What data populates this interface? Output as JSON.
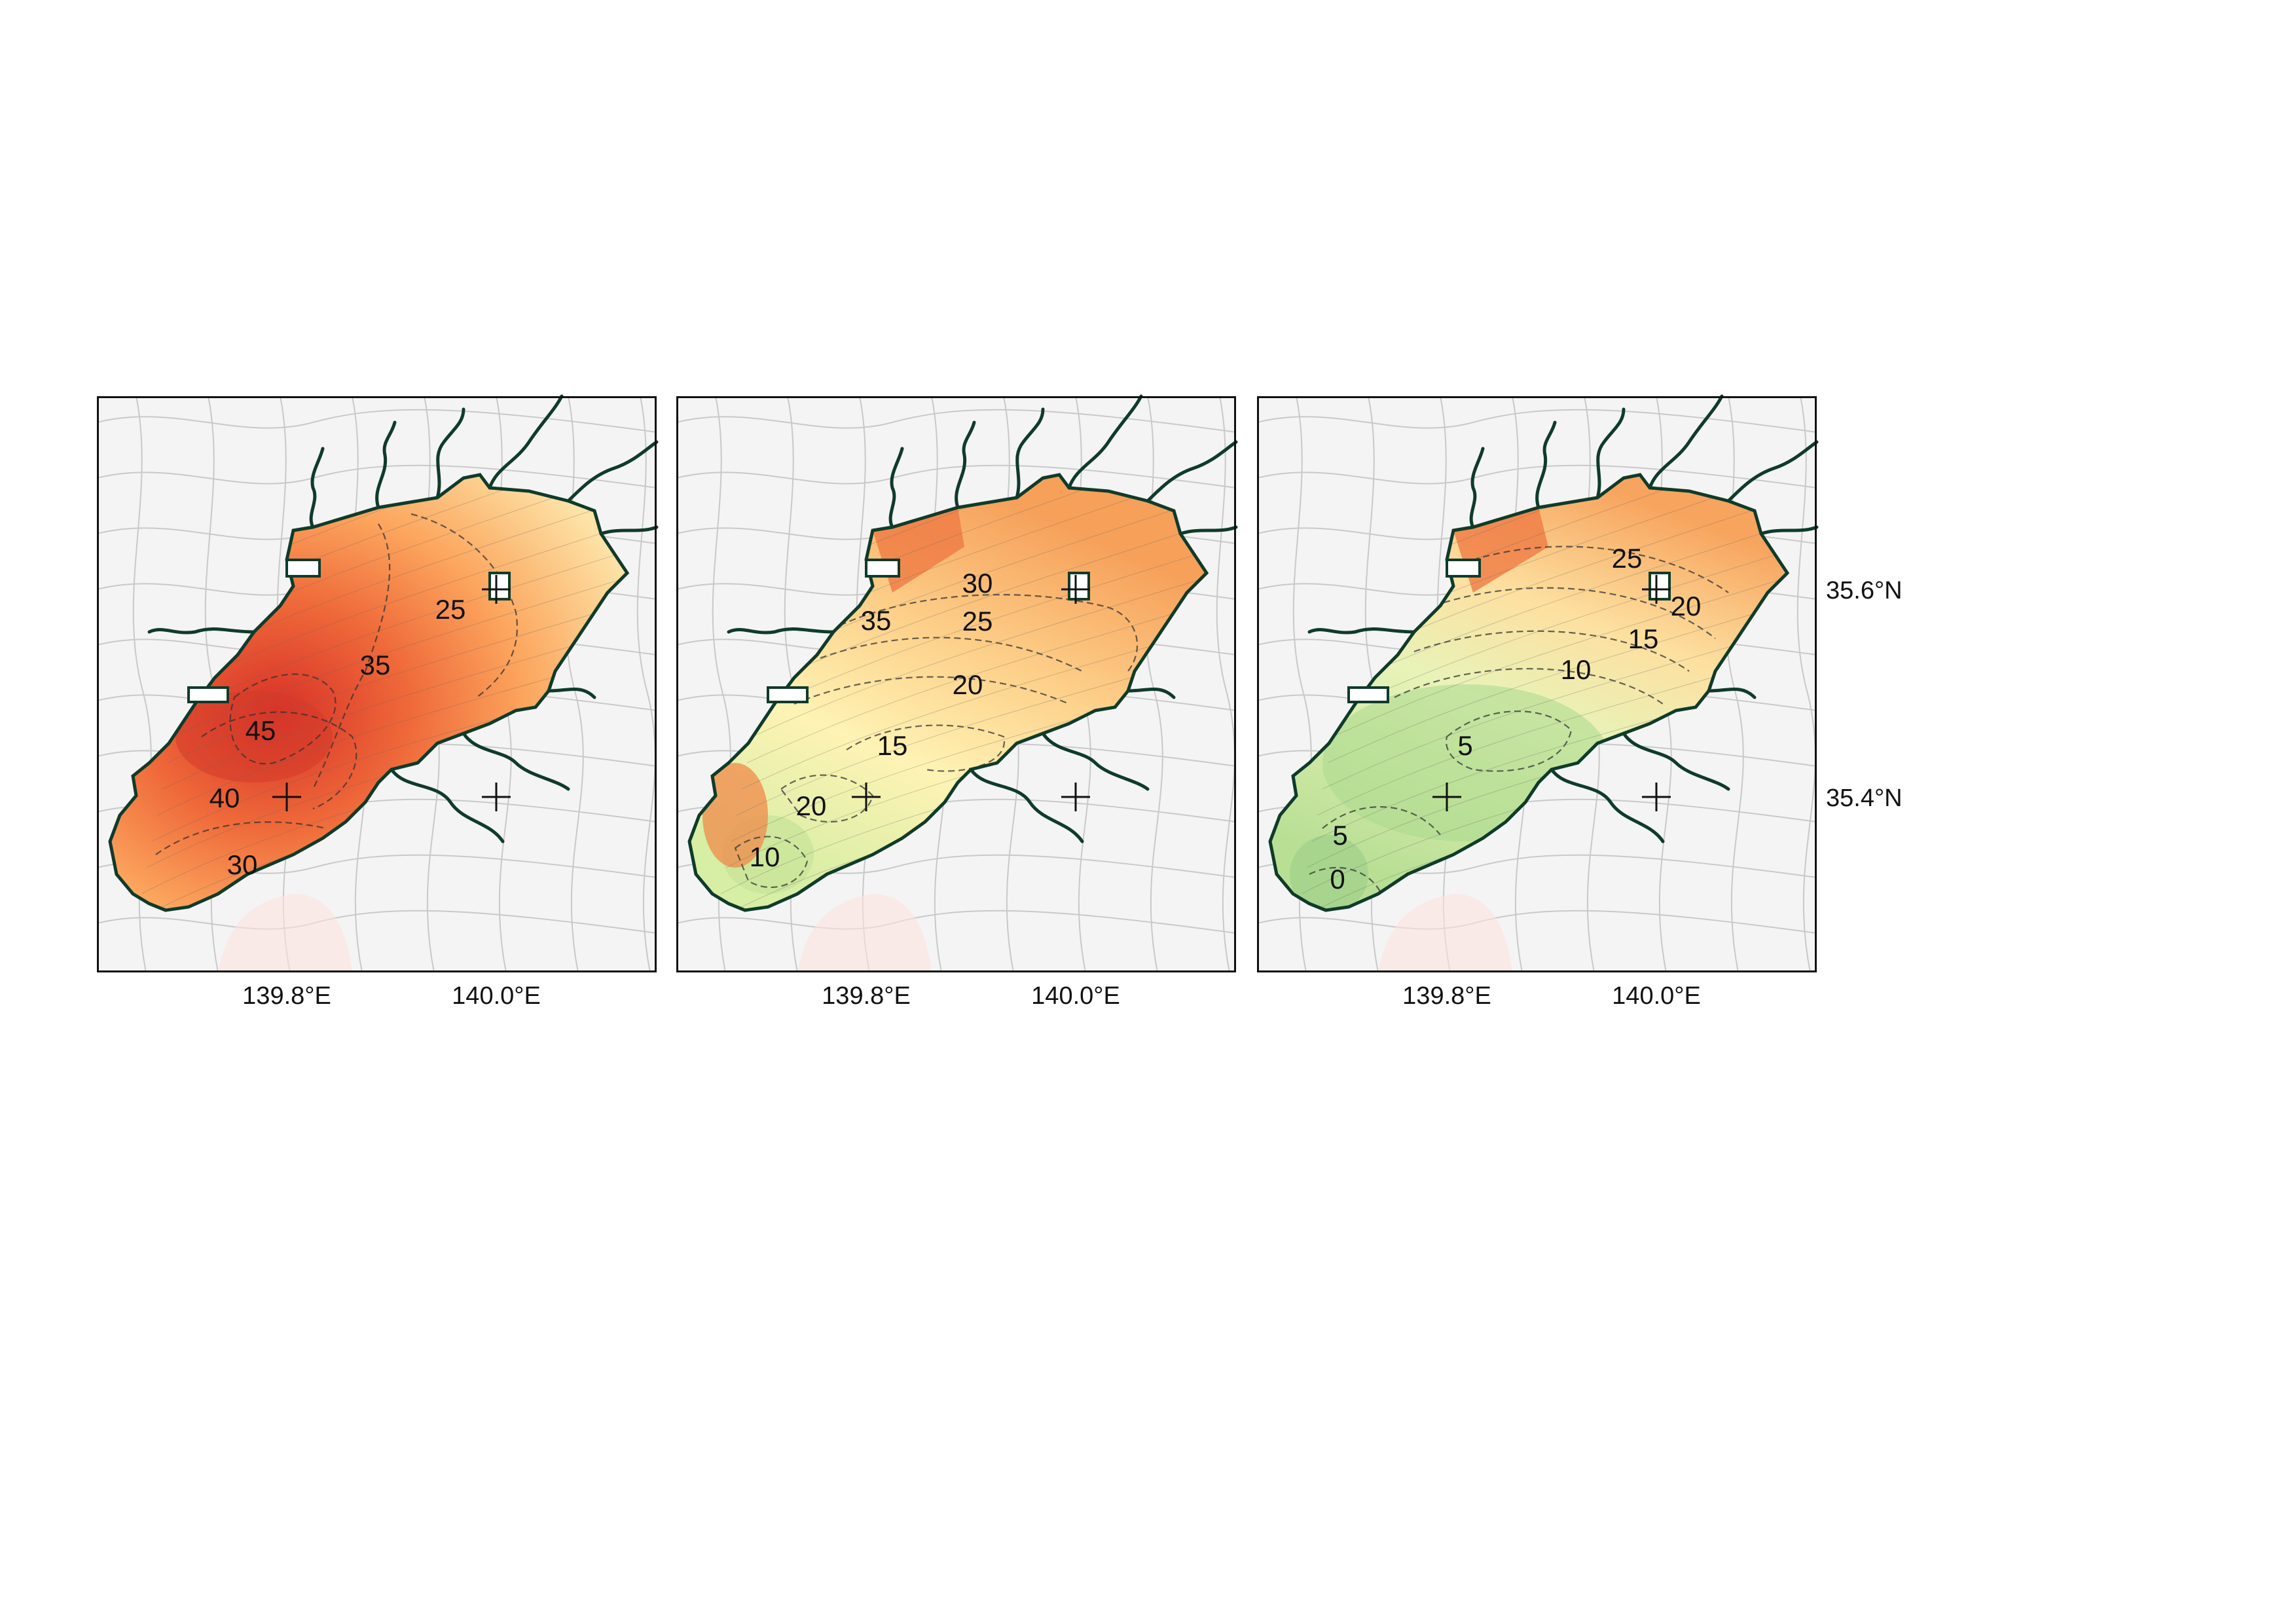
{
  "figure": {
    "x_ticks": [
      {
        "value": 139.8,
        "label": "139.8°E"
      },
      {
        "value": 140.0,
        "label": "140.0°E"
      }
    ],
    "y_ticks": [
      {
        "value": 35.6,
        "label": "35.6°N"
      },
      {
        "value": 35.4,
        "label": "35.4°N"
      }
    ],
    "crosshair_markers": [
      {
        "lon": 140.0,
        "lat": 35.6
      },
      {
        "lon": 139.8,
        "lat": 35.4
      },
      {
        "lon": 140.0,
        "lat": 35.4
      }
    ],
    "colormap": "red-orange-yellow-green (diverging)",
    "colors": {
      "land": "#f4f4f4",
      "boundaries": "#c9c9c9",
      "coastline": "#0f3b2a",
      "frame": "#111111",
      "high": "#d73027",
      "mid": "#fee08b",
      "low": "#a6d96a"
    }
  },
  "chart_data": [
    {
      "type": "heatmap",
      "panel": 1,
      "contour_labels": [
        "25",
        "35",
        "45",
        "40",
        "30"
      ],
      "value_range": [
        25,
        45
      ]
    },
    {
      "type": "heatmap",
      "panel": 2,
      "contour_labels": [
        "30",
        "35",
        "25",
        "20",
        "15",
        "20",
        "10"
      ],
      "value_range": [
        10,
        35
      ]
    },
    {
      "type": "heatmap",
      "panel": 3,
      "contour_labels": [
        "25",
        "20",
        "15",
        "10",
        "5",
        "5",
        "0"
      ],
      "value_range": [
        0,
        25
      ]
    }
  ]
}
